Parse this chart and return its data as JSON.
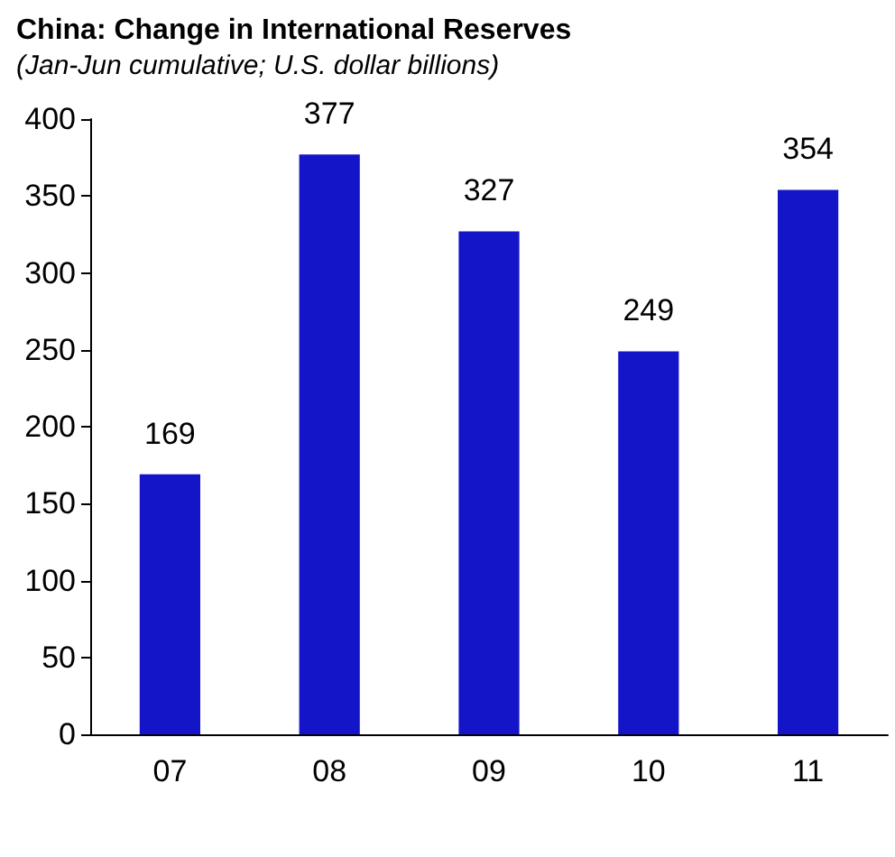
{
  "chart_data": {
    "type": "bar",
    "title": "China: Change in International Reserves",
    "subtitle": "(Jan-Jun cumulative; U.S. dollar billions)",
    "categories": [
      "07",
      "08",
      "09",
      "10",
      "11"
    ],
    "values": [
      169,
      377,
      327,
      249,
      354
    ],
    "color": "#1414c8",
    "ylim": [
      0,
      400
    ],
    "yticks": [
      0,
      50,
      100,
      150,
      200,
      250,
      300,
      350,
      400
    ],
    "data_labels": true
  }
}
